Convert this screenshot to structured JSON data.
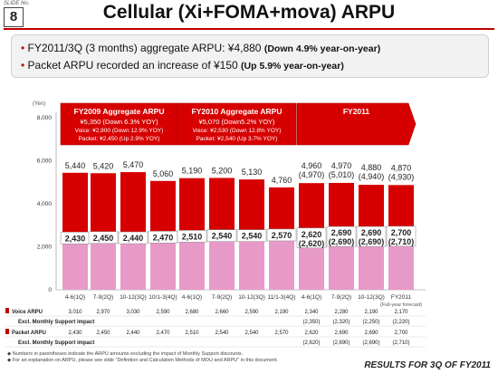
{
  "slide": {
    "label": "SLIDE No.",
    "number": "8"
  },
  "title": "Cellular (Xi+FOMA+mova) ARPU",
  "bullets": [
    {
      "main": "FY2011/3Q (3 months) aggregate ARPU: ¥4,880",
      "note": "(Down 4.9% year-on-year)"
    },
    {
      "main": "Packet ARPU recorded an increase of ¥150",
      "note": "(Up 5.9% year-on-year)"
    }
  ],
  "chart_data": {
    "type": "bar",
    "ylabel": "(Yen)",
    "ylim": [
      0,
      8000
    ],
    "yticks": [
      "0",
      "2,000",
      "4,000",
      "6,000",
      "8,000"
    ],
    "ytick_values": [
      0,
      2000,
      4000,
      6000,
      8000
    ],
    "categories": [
      "4-6(1Q)",
      "7-9(2Q)",
      "10-12(3Q)",
      "10/1-3(4Q)",
      "4-6(1Q)",
      "7-9(2Q)",
      "10-12(3Q)",
      "11/1-3(4Q)",
      "4-6(1Q)",
      "7-9(2Q)",
      "10-12(3Q)",
      "FY2011"
    ],
    "fy_forecast_label": "(Full-year forecast)",
    "series": [
      {
        "name": "Voice ARPU",
        "values": [
          3010,
          2970,
          3030,
          2590,
          2680,
          2660,
          2590,
          2190,
          2340,
          2280,
          2190,
          2170
        ]
      },
      {
        "name": "Packet ARPU",
        "values": [
          2430,
          2450,
          2440,
          2470,
          2510,
          2540,
          2540,
          2570,
          2620,
          2690,
          2690,
          2700
        ]
      }
    ],
    "totals": [
      "5,440",
      "5,420",
      "5,470",
      "5,060",
      "5,190",
      "5,200",
      "5,130",
      "4,760",
      "4,960",
      "4,970",
      "4,880",
      "4,870"
    ],
    "totals_excl": [
      "",
      "",
      "",
      "",
      "",
      "",
      "",
      "",
      "(4,970)",
      "(5,010)",
      "(4,940)",
      "(4,930)"
    ],
    "packet_labels": [
      "2,430",
      "2,450",
      "2,440",
      "2,470",
      "2,510",
      "2,540",
      "2,540",
      "2,570",
      "2,620",
      "2,690",
      "2,690",
      "2,700"
    ],
    "packet_excl_labels": [
      "",
      "",
      "",
      "",
      "",
      "",
      "",
      "",
      "(2,620)",
      "(2,690)",
      "(2,690)",
      "(2,710)"
    ],
    "boxes": [
      {
        "title": "FY2009 Aggregate ARPU",
        "lines": [
          "¥5,350 (Down 6.3% YOY)",
          "Voice: ¥2,900 (Down 12.9% YOY)",
          "Packet: ¥2,450 (Up 2.9% YOY)"
        ]
      },
      {
        "title": "FY2010 Aggregate ARPU",
        "lines": [
          "¥5,070 (Down5.2% YOY)",
          "Voice: ¥2,530 (Down 12.8% YOY)",
          "Packet: ¥2,540 (Up 3.7% YOY)"
        ]
      },
      {
        "title": "FY2011",
        "lines": []
      }
    ],
    "colors": {
      "voice": "#d60000",
      "packet": "#e79ac8",
      "box": "#d70000"
    }
  },
  "table": {
    "rows": [
      {
        "label": "Voice ARPU",
        "values": [
          "3,010",
          "2,970",
          "3,030",
          "2,590",
          "2,680",
          "2,660",
          "2,590",
          "2,190",
          "2,340",
          "2,280",
          "2,190",
          "2,170"
        ]
      },
      {
        "label": "Excl. Monthly Support impact",
        "values": [
          "",
          "",
          "",
          "",
          "",
          "",
          "",
          "",
          "(2,350)",
          "(2,320)",
          "(2,250)",
          "(2,220)"
        ]
      },
      {
        "label": "Packet ARPU",
        "values": [
          "2,430",
          "2,450",
          "2,440",
          "2,470",
          "2,510",
          "2,540",
          "2,540",
          "2,570",
          "2,620",
          "2,690",
          "2,690",
          "2,700"
        ]
      },
      {
        "label": "Excl. Monthly Support impact",
        "values": [
          "",
          "",
          "",
          "",
          "",
          "",
          "",
          "",
          "(2,620)",
          "(2,690)",
          "(2,690)",
          "(2,710)"
        ]
      }
    ]
  },
  "notes": [
    "Numbers in parentheses indicate the ARPU amounts excluding the impact of Monthly Support discounts.",
    "For an explanation on ARPU, please see slide \"Definition and Calculation Methods of MOU and ARPU\" in this document."
  ],
  "footer": "RESULTS FOR 3Q OF FY2011"
}
